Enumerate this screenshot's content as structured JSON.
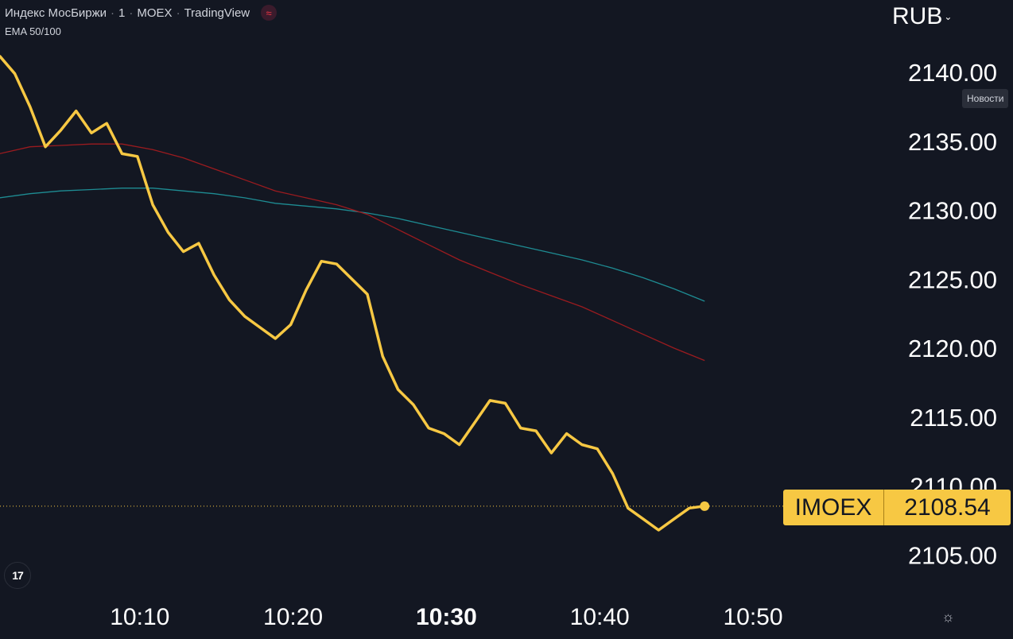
{
  "header": {
    "instrument": "Индекс МосБиржи",
    "interval": "1",
    "exchange": "MOEX",
    "source": "TradingView",
    "indicator": "EMA 50/100",
    "wave_icon": "≈"
  },
  "currency": {
    "label": "RUB",
    "chevron": "⌄"
  },
  "news_label": "Новости",
  "logo_text": "17",
  "settings_icon": "☼",
  "price_tag": {
    "symbol": "IMOEX",
    "value": "2108.54"
  },
  "colors": {
    "background": "#131722",
    "price_line": "#f7c843",
    "ema_50": "#9b1b1f",
    "ema_100": "#1e8c93",
    "axis_text": "#ffffff"
  },
  "chart_data": {
    "type": "line",
    "x_ticks": [
      {
        "label": "10:10",
        "minute": 10,
        "bold": false
      },
      {
        "label": "10:20",
        "minute": 20,
        "bold": false
      },
      {
        "label": "10:30",
        "minute": 30,
        "bold": true
      },
      {
        "label": "10:40",
        "minute": 40,
        "bold": false
      },
      {
        "label": "10:50",
        "minute": 50,
        "bold": false
      }
    ],
    "y_ticks": [
      "2140.00",
      "2135.00",
      "2130.00",
      "2125.00",
      "2120.00",
      "2115.00",
      "2110.00",
      "2105.00"
    ],
    "xlim_minutes": [
      1,
      55
    ],
    "ylim": [
      2101.5,
      2143.0
    ],
    "grid": false,
    "last_value": 2108.54,
    "series": [
      {
        "role": "price",
        "x": [
          1.0,
          2.0,
          3.0,
          4.0,
          5.0,
          6.0,
          7.0,
          8.0,
          9.0,
          10.0,
          11.0,
          12.0,
          13.0,
          14.0,
          15.0,
          16.0,
          17.0,
          18.0,
          19.0,
          20.0,
          21.0,
          22.0,
          23.0,
          24.0,
          25.0,
          26.0,
          27.0,
          28.0,
          29.0,
          30.0,
          31.0,
          32.0,
          33.0,
          34.0,
          35.0,
          36.0,
          37.0,
          38.0,
          39.0,
          40.0,
          41.0,
          42.0,
          43.0,
          44.0,
          45.0,
          46.0,
          47.0
        ],
        "values": [
          2141.2,
          2139.9,
          2137.5,
          2134.6,
          2135.8,
          2137.2,
          2135.6,
          2136.3,
          2134.1,
          2133.9,
          2130.4,
          2128.4,
          2127.0,
          2127.6,
          2125.3,
          2123.5,
          2122.3,
          2121.5,
          2120.7,
          2121.7,
          2124.2,
          2126.3,
          2126.1,
          2125.0,
          2123.9,
          2119.4,
          2117.0,
          2115.9,
          2114.2,
          2113.8,
          2113.0,
          2114.6,
          2116.2,
          2116.0,
          2114.2,
          2114.0,
          2112.4,
          2113.8,
          2113.0,
          2112.7,
          2110.9,
          2108.4,
          2107.6,
          2106.8,
          2107.6,
          2108.4,
          2108.54
        ]
      },
      {
        "role": "ema_50",
        "x": [
          1.0,
          3.0,
          5.0,
          7.0,
          9.0,
          11.0,
          13.0,
          15.0,
          17.0,
          19.0,
          21.0,
          23.0,
          25.0,
          27.0,
          29.0,
          31.0,
          33.0,
          35.0,
          37.0,
          39.0,
          41.0,
          43.0,
          45.0,
          47.0
        ],
        "values": [
          2134.1,
          2134.6,
          2134.7,
          2134.8,
          2134.8,
          2134.4,
          2133.8,
          2133.0,
          2132.2,
          2131.4,
          2130.9,
          2130.4,
          2129.7,
          2128.6,
          2127.5,
          2126.4,
          2125.5,
          2124.6,
          2123.8,
          2123.0,
          2122.0,
          2121.0,
          2120.0,
          2119.1
        ]
      },
      {
        "role": "ema_100",
        "x": [
          1.0,
          3.0,
          5.0,
          7.0,
          9.0,
          11.0,
          13.0,
          15.0,
          17.0,
          19.0,
          21.0,
          23.0,
          25.0,
          27.0,
          29.0,
          31.0,
          33.0,
          35.0,
          37.0,
          39.0,
          41.0,
          43.0,
          45.0,
          47.0
        ],
        "values": [
          2130.9,
          2131.2,
          2131.4,
          2131.5,
          2131.6,
          2131.6,
          2131.4,
          2131.2,
          2130.9,
          2130.5,
          2130.3,
          2130.1,
          2129.8,
          2129.4,
          2128.9,
          2128.4,
          2127.9,
          2127.4,
          2126.9,
          2126.4,
          2125.8,
          2125.1,
          2124.3,
          2123.4
        ]
      }
    ]
  }
}
